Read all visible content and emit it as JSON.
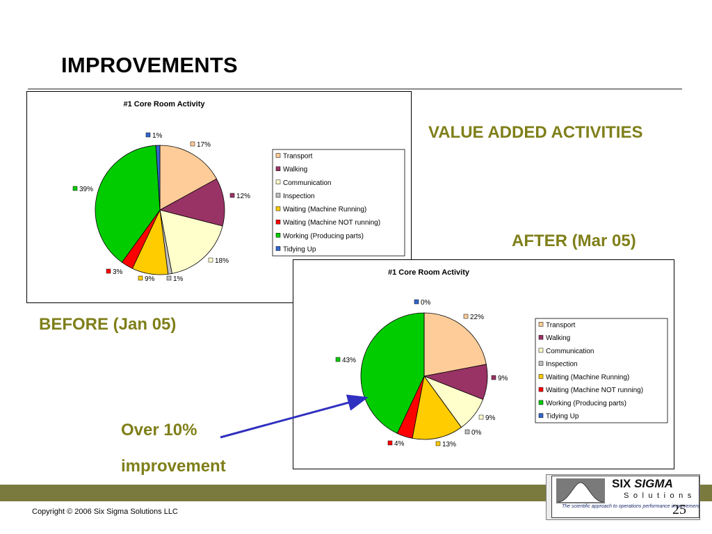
{
  "slide": {
    "title": "IMPROVEMENTS",
    "value_added_label": "VALUE ADDED ACTIVITIES",
    "after_label": "AFTER (Mar 05)",
    "before_label": "BEFORE (Jan 05)",
    "improvement_line1": "Over 10%",
    "improvement_line2": "improvement",
    "copyright": "Copyright © 2006 Six Sigma Solutions LLC",
    "page_number": "25"
  },
  "logo": {
    "name_part1": "SIX ",
    "name_part2": "SIGMA",
    "subtitle": "Solutions",
    "tagline": "The scientific approach to operations performance improvement"
  },
  "colors": {
    "accent_text": "#7f7f1a",
    "footer_band": "#7a7a3e",
    "arrow": "#3030c0"
  },
  "chart_data": [
    {
      "type": "pie",
      "title": "#1 Core Room Activity",
      "categories": [
        "Transport",
        "Walking",
        "Communication",
        "Inspection",
        "Waiting (Machine Running)",
        "Waiting (Machine NOT running)",
        "Working (Producing parts)",
        "Tidying Up"
      ],
      "values": [
        17,
        12,
        18,
        1,
        9,
        3,
        39,
        1
      ],
      "labels": [
        "17%",
        "12%",
        "18%",
        "1%",
        "9%",
        "3%",
        "39%",
        "1%"
      ],
      "colors": [
        "#fdcc99",
        "#993366",
        "#ffffcc",
        "#c0c0c0",
        "#ffcc00",
        "#ff0000",
        "#00cc00",
        "#3366cc"
      ],
      "legend": "right"
    },
    {
      "type": "pie",
      "title": "#1 Core Room Activity",
      "categories": [
        "Transport",
        "Walking",
        "Communication",
        "Inspection",
        "Waiting (Machine Running)",
        "Waiting (Machine NOT running)",
        "Working (Producing parts)",
        "Tidying Up"
      ],
      "values": [
        22,
        9,
        9,
        0,
        13,
        4,
        43,
        0
      ],
      "labels": [
        "22%",
        "9%",
        "9%",
        "0%",
        "13%",
        "4%",
        "43%",
        "0%"
      ],
      "colors": [
        "#fdcc99",
        "#993366",
        "#ffffcc",
        "#c0c0c0",
        "#ffcc00",
        "#ff0000",
        "#00cc00",
        "#3366cc"
      ],
      "legend": "right"
    }
  ]
}
